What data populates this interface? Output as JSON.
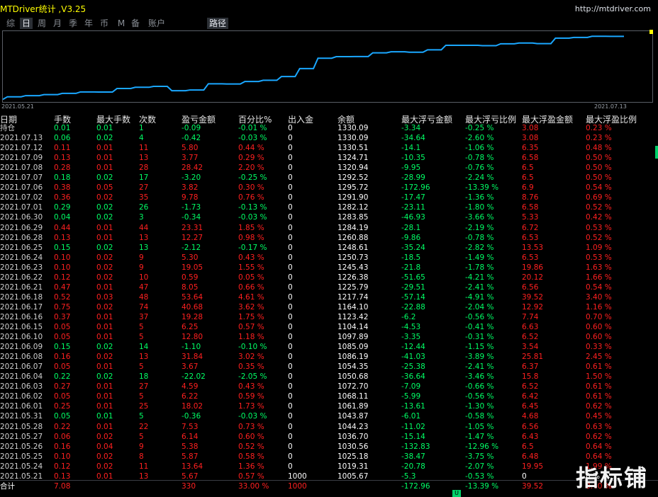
{
  "app": {
    "title": "MTDriver统计 ,V3.25",
    "url": "http://mtdriver.com"
  },
  "tabs": [
    "综",
    "日",
    "周",
    "月",
    "季",
    "年",
    "币",
    "M",
    "备",
    "账户"
  ],
  "active_tab": "日",
  "path_button": "路径",
  "chart": {
    "start_label": "2021.05.21",
    "end_label": "2021.07.13",
    "line_color": "#1aa7ff"
  },
  "headers": [
    "日期",
    "手数",
    "最大手数",
    "次数",
    "盈亏金额",
    "百分比%",
    "出入金",
    "余额",
    "最大浮亏金额",
    "最大浮亏比例",
    "最大浮盈金额",
    "最大浮盈比例"
  ],
  "rows": [
    [
      "持仓",
      "0.01",
      "0.01",
      "1",
      "-0.09",
      "-0.01 %",
      "0",
      "1330.09",
      "-3.34",
      "-0.25 %",
      "3.08",
      "0.23 %",
      "g"
    ],
    [
      "2021.07.13",
      "0.06",
      "0.02",
      "4",
      "-0.42",
      "-0.03 %",
      "0",
      "1330.09",
      "-34.64",
      "-2.60 %",
      "3.08",
      "0.23 %",
      "g"
    ],
    [
      "2021.07.12",
      "0.11",
      "0.01",
      "11",
      "5.80",
      "0.44 %",
      "0",
      "1330.51",
      "-14.1",
      "-1.06 %",
      "6.35",
      "0.48 %",
      "r"
    ],
    [
      "2021.07.09",
      "0.13",
      "0.01",
      "13",
      "3.77",
      "0.29 %",
      "0",
      "1324.71",
      "-10.35",
      "-0.78 %",
      "6.58",
      "0.50 %",
      "r"
    ],
    [
      "2021.07.08",
      "0.28",
      "0.01",
      "28",
      "28.42",
      "2.20 %",
      "0",
      "1320.94",
      "-9.95",
      "-0.76 %",
      "6.5",
      "0.50 %",
      "r"
    ],
    [
      "2021.07.07",
      "0.18",
      "0.02",
      "17",
      "-3.20",
      "-0.25 %",
      "0",
      "1292.52",
      "-28.99",
      "-2.24 %",
      "6.5",
      "0.50 %",
      "g"
    ],
    [
      "2021.07.06",
      "0.38",
      "0.05",
      "27",
      "3.82",
      "0.30 %",
      "0",
      "1295.72",
      "-172.96",
      "-13.39 %",
      "6.9",
      "0.54 %",
      "r"
    ],
    [
      "2021.07.02",
      "0.36",
      "0.02",
      "35",
      "9.78",
      "0.76 %",
      "0",
      "1291.90",
      "-17.47",
      "-1.36 %",
      "8.76",
      "0.69 %",
      "r"
    ],
    [
      "2021.07.01",
      "0.29",
      "0.02",
      "26",
      "-1.73",
      "-0.13 %",
      "0",
      "1282.12",
      "-23.11",
      "-1.80 %",
      "6.58",
      "0.52 %",
      "g"
    ],
    [
      "2021.06.30",
      "0.04",
      "0.02",
      "3",
      "-0.34",
      "-0.03 %",
      "0",
      "1283.85",
      "-46.93",
      "-3.66 %",
      "5.33",
      "0.42 %",
      "g"
    ],
    [
      "2021.06.29",
      "0.44",
      "0.01",
      "44",
      "23.31",
      "1.85 %",
      "0",
      "1284.19",
      "-28.1",
      "-2.19 %",
      "6.72",
      "0.53 %",
      "r"
    ],
    [
      "2021.06.28",
      "0.13",
      "0.01",
      "13",
      "12.27",
      "0.98 %",
      "0",
      "1260.88",
      "-9.86",
      "-0.78 %",
      "6.53",
      "0.52 %",
      "r"
    ],
    [
      "2021.06.25",
      "0.15",
      "0.02",
      "13",
      "-2.12",
      "-0.17 %",
      "0",
      "1248.61",
      "-35.24",
      "-2.82 %",
      "13.53",
      "1.09 %",
      "g"
    ],
    [
      "2021.06.24",
      "0.10",
      "0.02",
      "9",
      "5.30",
      "0.43 %",
      "0",
      "1250.73",
      "-18.5",
      "-1.49 %",
      "6.53",
      "0.53 %",
      "r"
    ],
    [
      "2021.06.23",
      "0.10",
      "0.02",
      "9",
      "19.05",
      "1.55 %",
      "0",
      "1245.43",
      "-21.8",
      "-1.78 %",
      "19.86",
      "1.63 %",
      "r"
    ],
    [
      "2021.06.22",
      "0.12",
      "0.02",
      "10",
      "0.59",
      "0.05 %",
      "0",
      "1226.38",
      "-51.65",
      "-4.21 %",
      "20.12",
      "1.66 %",
      "r"
    ],
    [
      "2021.06.21",
      "0.47",
      "0.01",
      "47",
      "8.05",
      "0.66 %",
      "0",
      "1225.79",
      "-29.51",
      "-2.41 %",
      "6.56",
      "0.54 %",
      "r"
    ],
    [
      "2021.06.18",
      "0.52",
      "0.03",
      "48",
      "53.64",
      "4.61 %",
      "0",
      "1217.74",
      "-57.14",
      "-4.91 %",
      "39.52",
      "3.40 %",
      "r"
    ],
    [
      "2021.06.17",
      "0.75",
      "0.02",
      "74",
      "40.68",
      "3.62 %",
      "0",
      "1164.10",
      "-22.88",
      "-2.04 %",
      "12.92",
      "1.16 %",
      "r"
    ],
    [
      "2021.06.16",
      "0.37",
      "0.01",
      "37",
      "19.28",
      "1.75 %",
      "0",
      "1123.42",
      "-6.2",
      "-0.56 %",
      "7.74",
      "0.70 %",
      "r"
    ],
    [
      "2021.06.15",
      "0.05",
      "0.01",
      "5",
      "6.25",
      "0.57 %",
      "0",
      "1104.14",
      "-4.53",
      "-0.41 %",
      "6.63",
      "0.60 %",
      "r"
    ],
    [
      "2021.06.10",
      "0.05",
      "0.01",
      "5",
      "12.80",
      "1.18 %",
      "0",
      "1097.89",
      "-3.35",
      "-0.31 %",
      "6.52",
      "0.60 %",
      "r"
    ],
    [
      "2021.06.09",
      "0.15",
      "0.02",
      "14",
      "-1.10",
      "-0.10 %",
      "0",
      "1085.09",
      "-12.44",
      "-1.15 %",
      "3.54",
      "0.33 %",
      "g"
    ],
    [
      "2021.06.08",
      "0.16",
      "0.02",
      "13",
      "31.84",
      "3.02 %",
      "0",
      "1086.19",
      "-41.03",
      "-3.89 %",
      "25.81",
      "2.45 %",
      "r"
    ],
    [
      "2021.06.07",
      "0.05",
      "0.01",
      "5",
      "3.67",
      "0.35 %",
      "0",
      "1054.35",
      "-25.38",
      "-2.41 %",
      "6.37",
      "0.61 %",
      "r"
    ],
    [
      "2021.06.04",
      "0.22",
      "0.02",
      "18",
      "-22.02",
      "-2.05 %",
      "0",
      "1050.68",
      "-36.64",
      "-3.46 %",
      "15.8",
      "1.50 %",
      "g"
    ],
    [
      "2021.06.03",
      "0.27",
      "0.01",
      "27",
      "4.59",
      "0.43 %",
      "0",
      "1072.70",
      "-7.09",
      "-0.66 %",
      "6.52",
      "0.61 %",
      "r"
    ],
    [
      "2021.06.02",
      "0.05",
      "0.01",
      "5",
      "6.22",
      "0.59 %",
      "0",
      "1068.11",
      "-5.99",
      "-0.56 %",
      "6.42",
      "0.61 %",
      "r"
    ],
    [
      "2021.06.01",
      "0.25",
      "0.01",
      "25",
      "18.02",
      "1.73 %",
      "0",
      "1061.89",
      "-13.61",
      "-1.30 %",
      "6.45",
      "0.62 %",
      "r"
    ],
    [
      "2021.05.31",
      "0.05",
      "0.01",
      "5",
      "-0.36",
      "-0.03 %",
      "0",
      "1043.87",
      "-6.01",
      "-0.58 %",
      "4.68",
      "0.45 %",
      "g"
    ],
    [
      "2021.05.28",
      "0.22",
      "0.01",
      "22",
      "7.53",
      "0.73 %",
      "0",
      "1044.23",
      "-11.02",
      "-1.05 %",
      "6.56",
      "0.63 %",
      "r"
    ],
    [
      "2021.05.27",
      "0.06",
      "0.02",
      "5",
      "6.14",
      "0.60 %",
      "0",
      "1036.70",
      "-15.14",
      "-1.47 %",
      "6.43",
      "0.62 %",
      "r"
    ],
    [
      "2021.05.26",
      "0.16",
      "0.04",
      "9",
      "5.38",
      "0.52 %",
      "0",
      "1030.56",
      "-132.83",
      "-12.96 %",
      "6.5",
      "0.64 %",
      "r"
    ],
    [
      "2021.05.25",
      "0.10",
      "0.02",
      "8",
      "5.87",
      "0.58 %",
      "0",
      "1025.18",
      "-38.47",
      "-3.75 %",
      "6.48",
      "0.64 %",
      "r"
    ],
    [
      "2021.05.24",
      "0.12",
      "0.02",
      "11",
      "13.64",
      "1.36 %",
      "0",
      "1019.31",
      "-20.78",
      "-2.07 %",
      "19.95",
      "1.99 %",
      "r"
    ],
    [
      "2021.05.21",
      "0.13",
      "0.01",
      "13",
      "5.67",
      "0.57 %",
      "1000",
      "1005.67",
      "-5.3",
      "-0.53 %",
      "0",
      "0 %",
      "r"
    ]
  ],
  "total": {
    "label": "合计",
    "lots": "7.08",
    "pnl": "330",
    "pct": "33.00 %",
    "deposit": "1000",
    "max_dd": "-172.96",
    "max_dd_pct": "-13.39 %",
    "max_fp": "39.52",
    "max_fp_pct": "3.40 %"
  },
  "watermark": "指标铺",
  "bottom_marker": "U"
}
